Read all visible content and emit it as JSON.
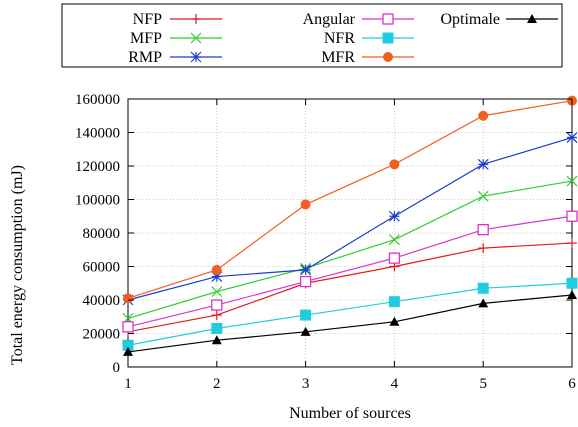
{
  "chart_data": {
    "type": "line",
    "title": "",
    "xlabel": "Number of sources",
    "ylabel": "Total energy consumption (mJ)",
    "x": [
      1,
      2,
      3,
      4,
      5,
      6
    ],
    "xlim": [
      1,
      6
    ],
    "ylim": [
      0,
      160000
    ],
    "xticks": [
      "1",
      "2",
      "3",
      "4",
      "5",
      "6"
    ],
    "yticks": [
      "0",
      "20000",
      "40000",
      "60000",
      "80000",
      "100000",
      "120000",
      "140000",
      "160000"
    ],
    "grid": true,
    "legend_position": "top",
    "series": [
      {
        "name": "NFP",
        "color": "#e41a1c",
        "marker": "plus",
        "values": [
          21000,
          31000,
          50000,
          60000,
          71000,
          74000
        ]
      },
      {
        "name": "MFP",
        "color": "#33cc33",
        "marker": "x",
        "values": [
          29000,
          45000,
          59000,
          76000,
          102000,
          111000
        ]
      },
      {
        "name": "RMP",
        "color": "#1a3fcc",
        "marker": "star",
        "values": [
          40000,
          54000,
          58000,
          90000,
          121000,
          137000
        ]
      },
      {
        "name": "Angular",
        "color": "#dd33cc",
        "marker": "open-square",
        "values": [
          24000,
          37000,
          51000,
          65000,
          82000,
          90000
        ]
      },
      {
        "name": "NFR",
        "color": "#22cce0",
        "marker": "filled-square",
        "values": [
          13000,
          23000,
          31000,
          39000,
          47000,
          50000
        ]
      },
      {
        "name": "MFR",
        "color": "#f06020",
        "marker": "filled-circle",
        "values": [
          41000,
          58000,
          97000,
          121000,
          150000,
          159000
        ]
      },
      {
        "name": "Optimale",
        "color": "#000000",
        "marker": "filled-triangle",
        "values": [
          9000,
          16000,
          21000,
          27000,
          38000,
          43000
        ]
      }
    ]
  }
}
